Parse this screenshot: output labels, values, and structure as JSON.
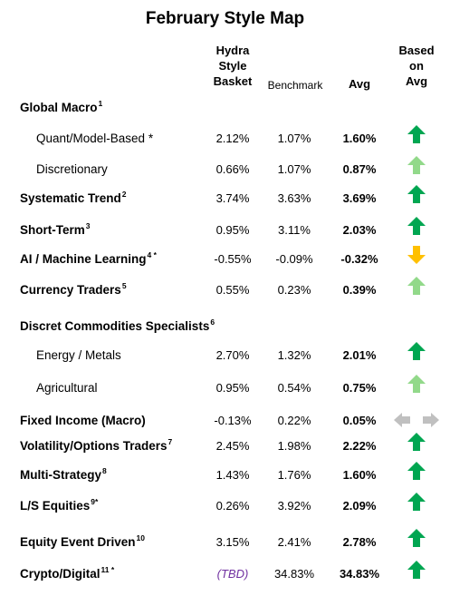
{
  "title": "February Style Map",
  "columns": {
    "hydra": [
      "Hydra",
      "Style",
      "Basket"
    ],
    "benchmark": "Benchmark",
    "avg": "Avg",
    "based": [
      "Based",
      "on",
      "Avg"
    ]
  },
  "colors": {
    "dark_green": "#00a651",
    "light_green": "#92d98a",
    "amber": "#ffc000",
    "gray": "#c0c0c0",
    "tbd": "#7030a0"
  },
  "rows": [
    {
      "label": "Global Macro",
      "sup": "1",
      "type": "category",
      "hydra": "",
      "benchmark": "",
      "avg": "",
      "indicator": "none"
    },
    {
      "label": "Quant/Model-Based *",
      "sup": "",
      "type": "sub",
      "hydra": "2.12%",
      "benchmark": "1.07%",
      "avg": "1.60%",
      "indicator": "up-dark"
    },
    {
      "label": "Discretionary",
      "sup": "",
      "type": "sub",
      "hydra": "0.66%",
      "benchmark": "1.07%",
      "avg": "0.87%",
      "indicator": "up-light"
    },
    {
      "label": "Systematic Trend",
      "sup": "2",
      "type": "category",
      "hydra": "3.74%",
      "benchmark": "3.63%",
      "avg": "3.69%",
      "indicator": "up-dark"
    },
    {
      "label": "Short-Term",
      "sup": "3",
      "type": "category",
      "hydra": "0.95%",
      "benchmark": "3.11%",
      "avg": "2.03%",
      "indicator": "up-dark"
    },
    {
      "label": "AI / Machine Learning",
      "sup": "4 *",
      "type": "category",
      "hydra": "-0.55%",
      "benchmark": "-0.09%",
      "avg": "-0.32%",
      "indicator": "down-amber"
    },
    {
      "label": "Currency Traders",
      "sup": "5",
      "type": "category",
      "hydra": "0.55%",
      "benchmark": "0.23%",
      "avg": "0.39%",
      "indicator": "up-light"
    },
    {
      "label": "Discret Commodities Specialists",
      "sup": "6",
      "type": "category",
      "hydra": "",
      "benchmark": "",
      "avg": "",
      "indicator": "none"
    },
    {
      "label": "Energy / Metals",
      "sup": "",
      "type": "sub",
      "hydra": "2.70%",
      "benchmark": "1.32%",
      "avg": "2.01%",
      "indicator": "up-dark"
    },
    {
      "label": "Agricultural",
      "sup": "",
      "type": "sub",
      "hydra": "0.95%",
      "benchmark": "0.54%",
      "avg": "0.75%",
      "indicator": "up-light"
    },
    {
      "label": "Fixed Income (Macro)",
      "sup": "",
      "type": "category",
      "hydra": "-0.13%",
      "benchmark": "0.22%",
      "avg": "0.05%",
      "indicator": "sideways-gray"
    },
    {
      "label": "Volatility/Options Traders",
      "sup": "7",
      "type": "category",
      "hydra": "2.45%",
      "benchmark": "1.98%",
      "avg": "2.22%",
      "indicator": "up-dark"
    },
    {
      "label": "Multi-Strategy",
      "sup": "8",
      "type": "category",
      "hydra": "1.43%",
      "benchmark": "1.76%",
      "avg": "1.60%",
      "indicator": "up-dark"
    },
    {
      "label": "L/S Equities",
      "sup": "9*",
      "type": "category",
      "hydra": "0.26%",
      "benchmark": "3.92%",
      "avg": "2.09%",
      "indicator": "up-dark"
    },
    {
      "label": "Equity Event Driven",
      "sup": "10",
      "type": "category",
      "hydra": "3.15%",
      "benchmark": "2.41%",
      "avg": "2.78%",
      "indicator": "up-dark"
    },
    {
      "label": "Crypto/Digital",
      "sup": "11 *",
      "type": "category",
      "hydra": "(TBD)",
      "benchmark": "34.83%",
      "avg": "34.83%",
      "indicator": "up-dark"
    }
  ]
}
